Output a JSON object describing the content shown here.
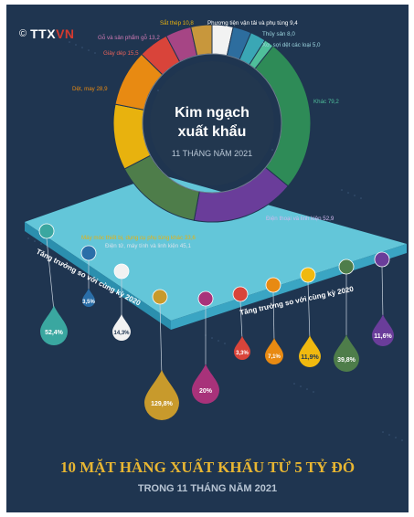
{
  "brand": {
    "logo_mark": "©",
    "logo_text_a": "TTX",
    "logo_text_b": "VN",
    "logo_sub": ""
  },
  "center": {
    "title_line1": "Kim ngạch",
    "title_line2": "xuất khẩu",
    "subtitle": "11 THÁNG NĂM 2021"
  },
  "growth_label_left": "Tăng trưởng so với cùng kỳ 2020",
  "growth_label_right": "Tăng trưởng so với cùng kỳ 2020",
  "footer": {
    "title": "10 MẶT HÀNG XUẤT KHẨU TỪ 5 TỶ ĐÔ",
    "subtitle": "TRONG 11 THÁNG NĂM 2021"
  },
  "chart_data": [
    {
      "type": "pie",
      "title": "Kim ngạch xuất khẩu",
      "subtitle": "11 THÁNG NĂM 2021",
      "slices": [
        {
          "label": "Sắt thép 10,8",
          "value": 10.8,
          "color": "#f2f2f2"
        },
        {
          "label": "Phương tiện vận tải và phụ tùng 9,4",
          "value": 9.4,
          "color": "#2d6d9e"
        },
        {
          "label": "Thủy sản 8,0",
          "value": 8.0,
          "color": "#3aa7b5"
        },
        {
          "label": "Xơ, sợi dệt các loại 5,0",
          "value": 5.0,
          "color": "#4fbf9b"
        },
        {
          "label": "Khác 79,2",
          "value": 79.2,
          "color": "#2e8b57"
        },
        {
          "label": "Điện thoại và linh kiện 52,9",
          "value": 52.9,
          "color": "#6a3d9a"
        },
        {
          "label": "Điện tử, máy tính và linh kiện 45,1",
          "value": 45.1,
          "color": "#4e7d4a"
        },
        {
          "label": "Máy móc thiết bị, dụng cụ phụ tùng khác 33,6",
          "value": 33.6,
          "color": "#e8b20e"
        },
        {
          "label": "Dệt, may 28,9",
          "value": 28.9,
          "color": "#e88a12"
        },
        {
          "label": "Giày dép 15,5",
          "value": 15.5,
          "color": "#d9443a"
        },
        {
          "label": "Gỗ và sản phẩm gỗ 13,2",
          "value": 13.2,
          "color": "#a64585"
        },
        {
          "label": "Sắt thép 10,8",
          "value": 10.8,
          "color": "#c8973c"
        }
      ]
    },
    {
      "type": "bar",
      "title": "Tăng trưởng so với cùng kỳ 2020",
      "series": [
        {
          "values": [
            {
              "label": "52,4%",
              "value": 52.4,
              "color": "#3aa7a0"
            },
            {
              "label": "3,5%",
              "value": 3.5,
              "color": "#2a6ea8"
            },
            {
              "label": "14,3%",
              "value": 14.3,
              "color": "#f2f2f2"
            },
            {
              "label": "129,8%",
              "value": 129.8,
              "color": "#c89a2c"
            },
            {
              "label": "20%",
              "value": 20,
              "color": "#a8327a"
            },
            {
              "label": "3,3%",
              "value": 3.3,
              "color": "#d9443a"
            },
            {
              "label": "7,1%",
              "value": 7.1,
              "color": "#e88a12"
            },
            {
              "label": "11,9%",
              "value": 11.9,
              "color": "#f0b90f"
            },
            {
              "label": "39,8%",
              "value": 39.8,
              "color": "#4e7d4a"
            },
            {
              "label": "11,6%",
              "value": 11.6,
              "color": "#6a3d9a"
            }
          ]
        }
      ]
    }
  ]
}
